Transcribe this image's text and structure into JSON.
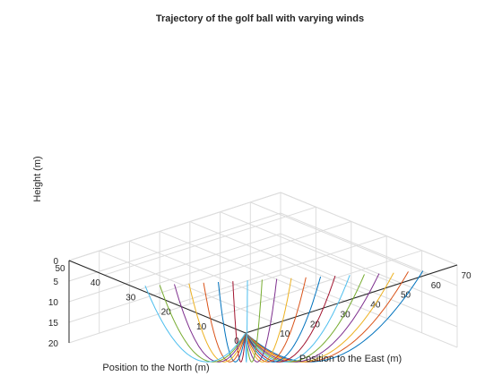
{
  "chart_data": {
    "type": "line",
    "title": "Trajectory of the golf ball with varying winds",
    "xlabel": "Position to the East (m)",
    "ylabel": "Position to the North (m)",
    "zlabel": "Height (m)",
    "xlim": [
      0,
      70
    ],
    "ylim": [
      0,
      50
    ],
    "zlim": [
      0,
      20
    ],
    "xticks": [
      "0",
      "10",
      "20",
      "30",
      "40",
      "50",
      "60",
      "70"
    ],
    "yticks": [
      "0",
      "10",
      "20",
      "30",
      "40",
      "50"
    ],
    "zticks": [
      "0",
      "5",
      "10",
      "15",
      "20"
    ],
    "grid": true,
    "view": "3d",
    "colors": [
      "#0072BD",
      "#D95319",
      "#EDB120",
      "#7E2F8E",
      "#77AC30",
      "#4DBEEE",
      "#A2142F"
    ],
    "series": [
      {
        "x_end": 61.0,
        "y_end": 2.0,
        "z_peak": 13.5,
        "z_end": 0.0
      },
      {
        "x_end": 58.5,
        "y_end": 4.0,
        "z_peak": 13.5,
        "z_end": 0.3
      },
      {
        "x_end": 56.0,
        "y_end": 6.0,
        "z_peak": 13.5,
        "z_end": 0.7
      },
      {
        "x_end": 53.5,
        "y_end": 8.0,
        "z_peak": 13.5,
        "z_end": 1.0
      },
      {
        "x_end": 51.0,
        "y_end": 10.0,
        "z_peak": 13.5,
        "z_end": 1.3
      },
      {
        "x_end": 48.5,
        "y_end": 12.0,
        "z_peak": 13.5,
        "z_end": 1.6
      },
      {
        "x_end": 46.0,
        "y_end": 14.0,
        "z_peak": 13.5,
        "z_end": 1.9
      },
      {
        "x_end": 43.5,
        "y_end": 16.0,
        "z_peak": 13.5,
        "z_end": 2.2
      },
      {
        "x_end": 41.0,
        "y_end": 18.0,
        "z_peak": 13.5,
        "z_end": 2.5
      },
      {
        "x_end": 38.5,
        "y_end": 20.0,
        "z_peak": 13.5,
        "z_end": 2.8
      },
      {
        "x_end": 36.0,
        "y_end": 22.0,
        "z_peak": 13.5,
        "z_end": 3.1
      },
      {
        "x_end": 33.5,
        "y_end": 24.0,
        "z_peak": 13.5,
        "z_end": 3.4
      },
      {
        "x_end": 31.0,
        "y_end": 26.0,
        "z_peak": 13.5,
        "z_end": 3.7
      },
      {
        "x_end": 28.5,
        "y_end": 28.0,
        "z_peak": 13.5,
        "z_end": 4.0
      },
      {
        "x_end": 26.0,
        "y_end": 30.0,
        "z_peak": 13.5,
        "z_end": 4.3
      },
      {
        "x_end": 23.5,
        "y_end": 32.0,
        "z_peak": 13.5,
        "z_end": 4.6
      },
      {
        "x_end": 21.0,
        "y_end": 34.0,
        "z_peak": 13.5,
        "z_end": 4.9
      },
      {
        "x_end": 18.5,
        "y_end": 36.0,
        "z_peak": 13.5,
        "z_end": 5.2
      },
      {
        "x_end": 16.0,
        "y_end": 38.0,
        "z_peak": 13.5,
        "z_end": 5.5
      },
      {
        "x_end": 13.5,
        "y_end": 40.0,
        "z_peak": 13.5,
        "z_end": 5.8
      }
    ]
  }
}
